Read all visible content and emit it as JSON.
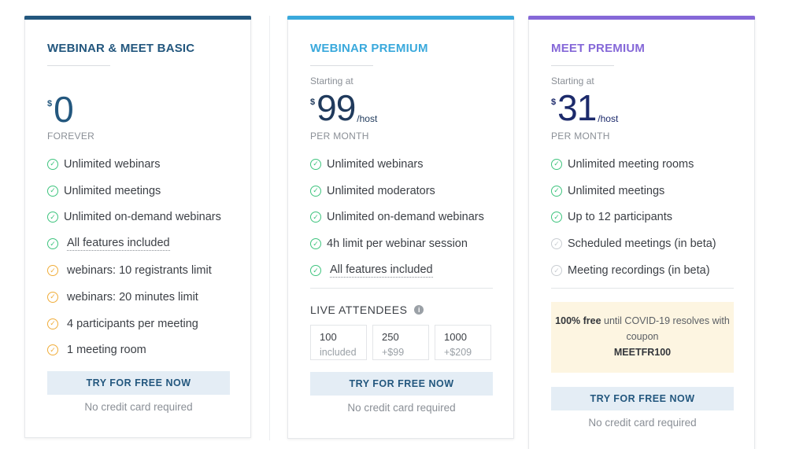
{
  "colors": {
    "basic": "#23577e",
    "webinar": "#3aa9dc",
    "meet": "#8568d8",
    "meet_price": "#1c2a6b",
    "green": "#3ec47e",
    "orange": "#f0ad3a"
  },
  "plans": {
    "basic": {
      "title": "WEBINAR & MEET BASIC",
      "currency": "$",
      "price": "0",
      "period": "FOREVER",
      "features": [
        {
          "text": "Unlimited webinars",
          "icon": "check-circle-icon"
        },
        {
          "text": "Unlimited meetings",
          "icon": "check-circle-icon"
        },
        {
          "text": "Unlimited on-demand webinars",
          "icon": "check-circle-icon"
        },
        {
          "text": "All features included",
          "icon": "check-circle-icon"
        },
        {
          "text": "webinars: 10 registrants limit",
          "icon": "limit-circle-icon"
        },
        {
          "text": "webinars: 20 minutes limit",
          "icon": "limit-circle-icon"
        },
        {
          "text": "4 participants per meeting",
          "icon": "limit-circle-icon"
        },
        {
          "text": "1 meeting room",
          "icon": "limit-circle-icon"
        }
      ],
      "cta": "TRY FOR FREE NOW",
      "note": "No credit card required"
    },
    "webinar": {
      "title": "WEBINAR PREMIUM",
      "starting": "Starting at",
      "currency": "$",
      "price": "99",
      "unit": "/host",
      "period": "PER MONTH",
      "features": [
        {
          "text": "Unlimited webinars",
          "icon": "check-circle-icon"
        },
        {
          "text": "Unlimited moderators",
          "icon": "check-circle-icon"
        },
        {
          "text": "Unlimited on-demand webinars",
          "icon": "check-circle-icon"
        },
        {
          "text": "4h limit per webinar session",
          "icon": "check-circle-icon"
        },
        {
          "text": "All features included",
          "icon": "check-circle-icon"
        }
      ],
      "attendees_label": "LIVE ATTENDEES",
      "tiers": [
        {
          "count": "100",
          "sub": "included"
        },
        {
          "count": "250",
          "sub": "+$99"
        },
        {
          "count": "1000",
          "sub": "+$209"
        }
      ],
      "cta": "TRY FOR FREE NOW",
      "note": "No credit card required"
    },
    "meet": {
      "title": "MEET PREMIUM",
      "starting": "Starting at",
      "currency": "$",
      "price": "31",
      "unit": "/host",
      "period": "PER MONTH",
      "features": [
        {
          "text": "Unlimited meeting rooms",
          "icon": "check-circle-icon"
        },
        {
          "text": "Unlimited meetings",
          "icon": "check-circle-icon"
        },
        {
          "text": "Up to 12 participants",
          "icon": "check-circle-icon"
        },
        {
          "text": "Scheduled meetings (in beta)",
          "icon": "beta-check-circle-icon"
        },
        {
          "text": "Meeting recordings (in beta)",
          "icon": "beta-check-circle-icon"
        }
      ],
      "promo": {
        "bold": "100% free",
        "text": " until COVID-19 resolves with coupon",
        "coupon": "MEETFR100"
      },
      "cta": "TRY FOR FREE NOW",
      "note": "No credit card required"
    }
  }
}
